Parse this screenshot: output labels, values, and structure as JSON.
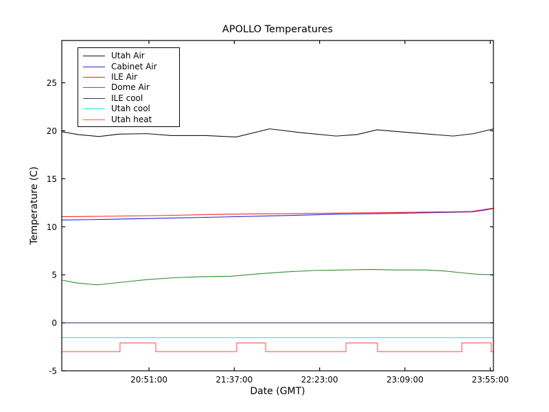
{
  "figure": {
    "background": "#ffffff"
  },
  "chart_data": {
    "type": "line",
    "title": "APOLLO Temperatures",
    "xlabel": "Date (GMT)",
    "ylabel": "Temperature (C)",
    "x_unit": "minutes since 20:00:00 GMT",
    "xlim": [
      4,
      236.7
    ],
    "ylim": [
      -5,
      29.4
    ],
    "x_ticks": [
      51,
      97,
      143,
      189,
      235
    ],
    "x_tick_labels": [
      "20:51:00",
      "21:37:00",
      "22:23:00",
      "23:09:00",
      "23:55:00"
    ],
    "y_ticks": [
      -5,
      0,
      5,
      10,
      15,
      20,
      25
    ],
    "y_tick_labels": [
      "-5",
      "0",
      "5",
      "10",
      "15",
      "20",
      "25"
    ],
    "grid": false,
    "tick_direction": "in",
    "legend_position": "upper left",
    "series": [
      {
        "name": "Utah Air",
        "color": "#111111",
        "x": [
          4,
          13,
          24,
          35,
          50,
          63,
          82,
          98,
          116,
          133,
          152,
          163,
          174,
          192,
          215,
          226,
          236.7
        ],
        "y": [
          19.9,
          19.6,
          19.4,
          19.65,
          19.7,
          19.5,
          19.5,
          19.35,
          20.2,
          19.8,
          19.45,
          19.6,
          20.1,
          19.8,
          19.45,
          19.7,
          20.2
        ]
      },
      {
        "name": "Cabinet Air",
        "color": "#2222dd",
        "x": [
          4,
          30,
          60,
          90,
          120,
          150,
          180,
          210,
          225,
          231,
          236.7
        ],
        "y": [
          10.7,
          10.78,
          10.9,
          11.02,
          11.15,
          11.3,
          11.38,
          11.5,
          11.55,
          11.7,
          11.9
        ]
      },
      {
        "name": "ILE Air",
        "color": "#ff2222",
        "x": [
          4,
          30,
          60,
          90,
          120,
          150,
          180,
          210,
          225,
          231,
          236.7
        ],
        "y": [
          11.05,
          11.1,
          11.18,
          11.3,
          11.36,
          11.42,
          11.48,
          11.55,
          11.6,
          11.78,
          11.95
        ]
      },
      {
        "name": "Dome Air",
        "color": "#2e8b2e",
        "x": [
          4,
          12,
          23,
          35,
          50,
          65,
          80,
          95,
          110,
          125,
          140,
          155,
          170,
          185,
          200,
          210,
          220,
          228,
          236.7
        ],
        "y": [
          4.45,
          4.15,
          3.95,
          4.2,
          4.5,
          4.7,
          4.8,
          4.85,
          5.1,
          5.3,
          5.45,
          5.5,
          5.55,
          5.5,
          5.5,
          5.4,
          5.2,
          5.05,
          5.0
        ]
      },
      {
        "name": "ILE cool",
        "color": "#3a3a70",
        "x": [
          4,
          236.7
        ],
        "y": [
          0.0,
          0.0
        ]
      },
      {
        "name": "Utah cool",
        "color": "#00e8e8",
        "x": [
          4,
          236.7
        ],
        "y": [
          -1.55,
          -1.55
        ]
      },
      {
        "name": "Utah heat",
        "color": "#ff5555",
        "x": [
          4,
          35.4,
          35.4,
          54.7,
          54.7,
          98.3,
          98.3,
          113.9,
          113.9,
          157.2,
          157.2,
          174.2,
          174.2,
          219.7,
          219.7,
          235.5,
          235.5,
          236.7
        ],
        "y": [
          -3.0,
          -3.0,
          -2.1,
          -2.1,
          -3.0,
          -3.0,
          -2.1,
          -2.1,
          -3.0,
          -3.0,
          -2.1,
          -2.1,
          -3.0,
          -3.0,
          -2.1,
          -2.1,
          -3.0,
          -3.0
        ]
      }
    ]
  }
}
